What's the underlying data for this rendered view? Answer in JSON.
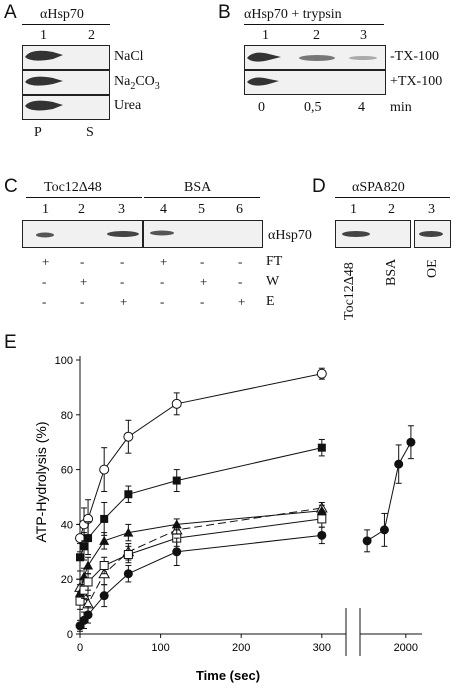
{
  "panel_labels": {
    "a": "A",
    "b": "B",
    "c": "C",
    "d": "D",
    "e": "E"
  },
  "panel_a": {
    "antibody": "αHsp70",
    "lanes": [
      "1",
      "2"
    ],
    "rows": [
      "NaCl",
      "Na2CO3",
      "Urea"
    ],
    "fractions": [
      "P",
      "S"
    ]
  },
  "panel_b": {
    "antibody": "αHsp70 + trypsin",
    "lanes": [
      "1",
      "2",
      "3"
    ],
    "rows": [
      "-TX-100",
      "+TX-100"
    ],
    "times": [
      "0",
      "0,5",
      "4"
    ],
    "time_unit": "min"
  },
  "panel_c": {
    "group1": "Toc12Δ48",
    "group2": "BSA",
    "lanes": [
      "1",
      "2",
      "3",
      "4",
      "5",
      "6"
    ],
    "antibody": "αHsp70",
    "matrix": [
      {
        "label": "FT",
        "signs": [
          "+",
          "-",
          "-",
          "+",
          "-",
          "-"
        ]
      },
      {
        "label": "W",
        "signs": [
          "-",
          "+",
          "-",
          "-",
          "+",
          "-"
        ]
      },
      {
        "label": "E",
        "signs": [
          "-",
          "-",
          "+",
          "-",
          "-",
          "+"
        ]
      }
    ]
  },
  "panel_d": {
    "antibody": "αSPA820",
    "lanes": [
      "1",
      "2",
      "3"
    ],
    "samples": [
      "Toc12Δ48",
      "BSA",
      "OE"
    ]
  },
  "chart_data": {
    "type": "line",
    "xlabel": "Time (sec)",
    "ylabel": "ATP-Hydrolysis (%)",
    "ylim": [
      0,
      100
    ],
    "xlim": [
      0,
      2100
    ],
    "x_break": [
      330,
      1550
    ],
    "yticks": [
      "0",
      "20",
      "40",
      "60",
      "80",
      "100"
    ],
    "xticks": [
      "0",
      "100",
      "200",
      "300",
      "2000"
    ],
    "series": [
      {
        "marker": "open-circle",
        "line": "solid",
        "x": [
          0,
          5,
          10,
          30,
          60,
          120,
          300
        ],
        "y": [
          35,
          40,
          42,
          60,
          72,
          84,
          95
        ],
        "err": [
          5,
          6,
          7,
          8,
          6,
          4,
          2
        ]
      },
      {
        "marker": "filled-square",
        "line": "solid",
        "x": [
          0,
          5,
          10,
          30,
          60,
          120,
          300
        ],
        "y": [
          28,
          32,
          35,
          42,
          51,
          56,
          68
        ],
        "err": [
          5,
          5,
          6,
          6,
          3,
          4,
          3
        ]
      },
      {
        "marker": "open-triangle",
        "line": "dashed",
        "x": [
          0,
          5,
          10,
          30,
          60,
          120,
          300
        ],
        "y": [
          17,
          14,
          11,
          22,
          30,
          38,
          46
        ],
        "err": [
          3,
          3,
          3,
          4,
          3,
          2,
          2
        ]
      },
      {
        "marker": "filled-triangle",
        "line": "solid",
        "x": [
          0,
          5,
          10,
          30,
          60,
          120,
          300
        ],
        "y": [
          15,
          21,
          25,
          34,
          37,
          40,
          45
        ],
        "err": [
          3,
          3,
          3,
          3,
          3,
          2,
          2
        ]
      },
      {
        "marker": "open-square",
        "line": "solid",
        "x": [
          0,
          5,
          10,
          30,
          60,
          120,
          300
        ],
        "y": [
          12,
          16,
          19,
          25,
          29,
          35,
          42
        ],
        "err": [
          3,
          3,
          3,
          3,
          3,
          3,
          3
        ]
      },
      {
        "marker": "filled-circle",
        "line": "solid",
        "x": [
          0,
          5,
          10,
          30,
          60,
          120,
          300
        ],
        "y": [
          3,
          5,
          7,
          14,
          22,
          30,
          36
        ],
        "err": [
          2,
          3,
          3,
          4,
          3,
          5,
          3
        ]
      },
      {
        "marker": "filled-circle",
        "line": "solid",
        "x": [
          1620,
          1790,
          1930,
          2050
        ],
        "y": [
          34,
          38,
          62,
          70
        ],
        "err": [
          4,
          6,
          7,
          6
        ]
      }
    ]
  }
}
